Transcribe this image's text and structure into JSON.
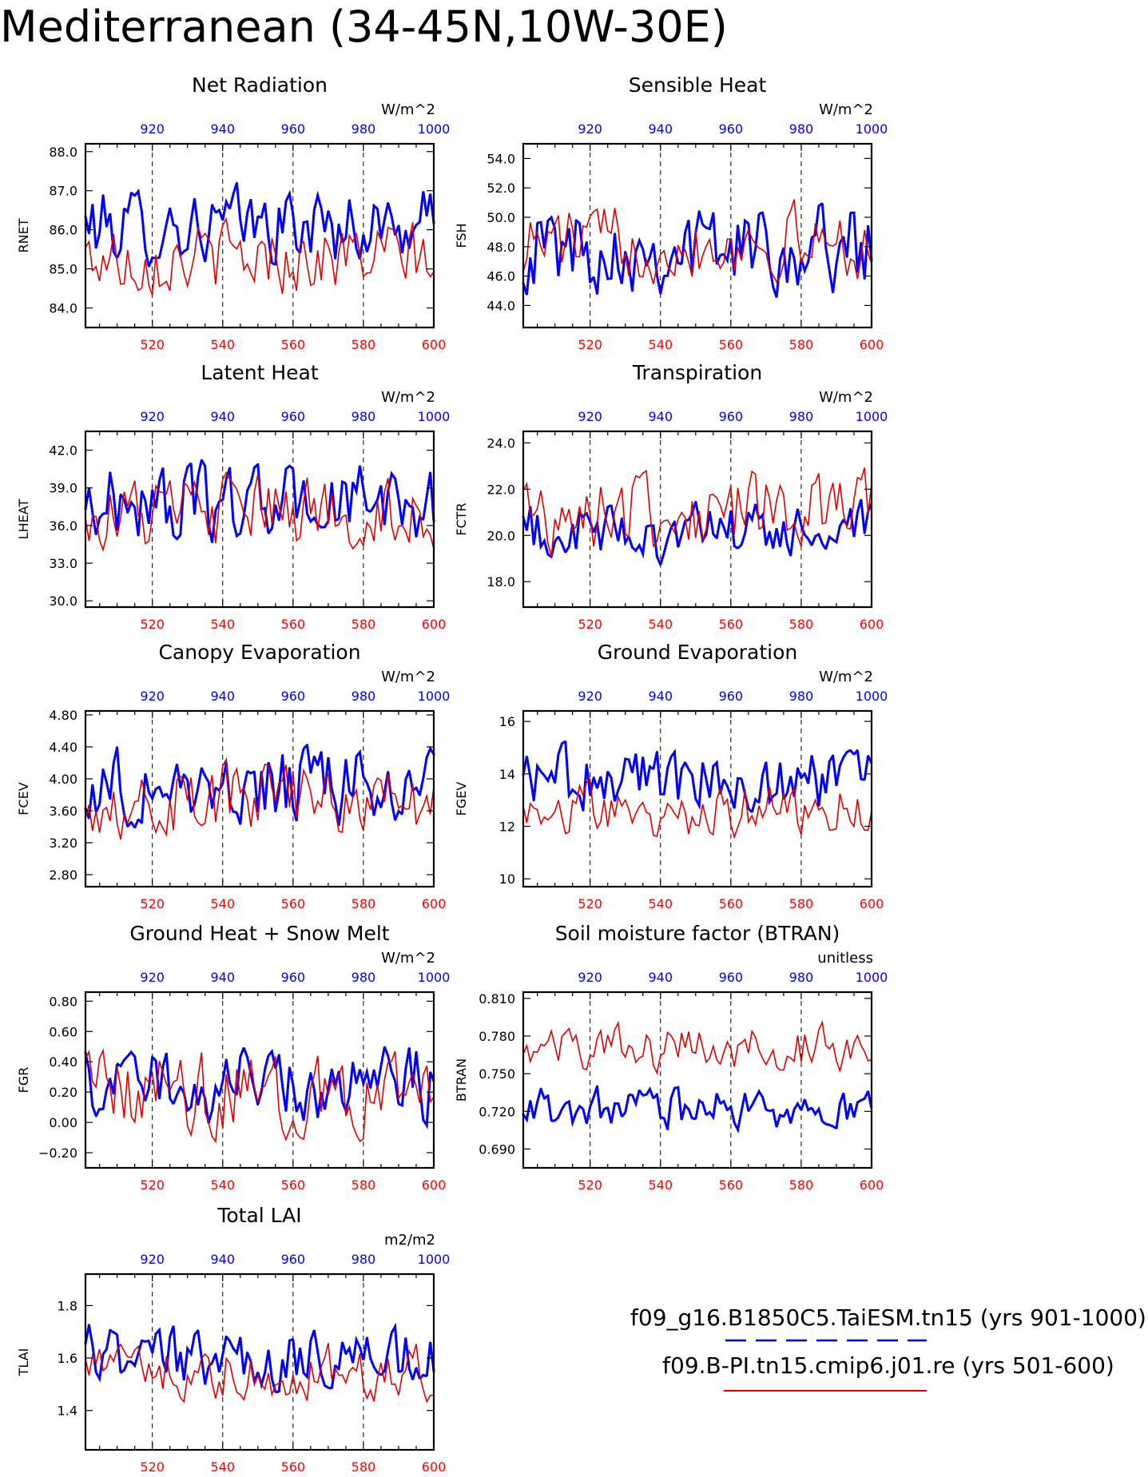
{
  "page_title": "Mediterranean (34-45N,10W-30E)",
  "legend": {
    "placement": "bottom-right",
    "case1_label": "f09_g16.B1850C5.TaiESM.tn15 (yrs 901-1000)",
    "case1_color": "#0000ff",
    "case1_style": "dashed",
    "case2_label": "f09.B-PI.tn15.cmip6.j01.re (yrs 501-600)",
    "case2_color": "#e00000",
    "case2_style": "solid"
  },
  "chart_data": [
    {
      "type": "line",
      "title": "Net Radiation",
      "ylabel": "RNET",
      "units": "W/m^2",
      "ylim": [
        83.5,
        88.2
      ],
      "yticks": [
        "84.0",
        "85.0",
        "86.0",
        "87.0",
        "88.0"
      ],
      "x_bottom": {
        "range": [
          501,
          600
        ],
        "ticks": [
          "520",
          "540",
          "560",
          "580",
          "600"
        ]
      },
      "x_top": {
        "range": [
          901,
          1000
        ],
        "ticks": [
          "920",
          "940",
          "960",
          "980",
          "1000"
        ]
      },
      "series": [
        {
          "color": "#0000ff",
          "mean": 86.1,
          "amp": 0.75
        },
        {
          "color": "#e00000",
          "mean": 85.3,
          "amp": 0.7
        }
      ]
    },
    {
      "type": "line",
      "title": "Sensible Heat",
      "ylabel": "FSH",
      "units": "W/m^2",
      "ylim": [
        42.5,
        55.0
      ],
      "yticks": [
        "44.0",
        "46.0",
        "48.0",
        "50.0",
        "52.0",
        "54.0"
      ],
      "x_bottom": {
        "range": [
          501,
          600
        ],
        "ticks": [
          "520",
          "540",
          "560",
          "580",
          "600"
        ]
      },
      "x_top": {
        "range": [
          901,
          1000
        ],
        "ticks": [
          "920",
          "940",
          "960",
          "980",
          "1000"
        ]
      },
      "series": [
        {
          "color": "#0000ff",
          "mean": 48.0,
          "amp": 2.3
        },
        {
          "color": "#e00000",
          "mean": 48.3,
          "amp": 1.9
        }
      ]
    },
    {
      "type": "line",
      "title": "Latent Heat",
      "ylabel": "LHEAT",
      "units": "W/m^2",
      "ylim": [
        29.5,
        43.5
      ],
      "yticks": [
        "30.0",
        "33.0",
        "36.0",
        "39.0",
        "42.0"
      ],
      "x_bottom": {
        "range": [
          501,
          600
        ],
        "ticks": [
          "520",
          "540",
          "560",
          "580",
          "600"
        ]
      },
      "x_top": {
        "range": [
          901,
          1000
        ],
        "ticks": [
          "920",
          "940",
          "960",
          "980",
          "1000"
        ]
      },
      "series": [
        {
          "color": "#0000ff",
          "mean": 37.8,
          "amp": 2.4
        },
        {
          "color": "#e00000",
          "mean": 37.0,
          "amp": 2.3
        }
      ]
    },
    {
      "type": "line",
      "title": "Transpiration",
      "ylabel": "FCTR",
      "units": "W/m^2",
      "ylim": [
        16.9,
        24.5
      ],
      "yticks": [
        "18.0",
        "20.0",
        "22.0",
        "24.0"
      ],
      "x_bottom": {
        "range": [
          501,
          600
        ],
        "ticks": [
          "520",
          "540",
          "560",
          "580",
          "600"
        ]
      },
      "x_top": {
        "range": [
          901,
          1000
        ],
        "ticks": [
          "920",
          "940",
          "960",
          "980",
          "1000"
        ]
      },
      "series": [
        {
          "color": "#0000ff",
          "mean": 20.1,
          "amp": 1.0
        },
        {
          "color": "#e00000",
          "mean": 21.0,
          "amp": 1.3
        }
      ]
    },
    {
      "type": "line",
      "title": "Canopy Evaporation",
      "ylabel": "FCEV",
      "units": "W/m^2",
      "ylim": [
        2.65,
        4.85
      ],
      "yticks": [
        "2.80",
        "3.20",
        "3.60",
        "4.00",
        "4.40",
        "4.80"
      ],
      "x_bottom": {
        "range": [
          501,
          600
        ],
        "ticks": [
          "520",
          "540",
          "560",
          "580",
          "600"
        ]
      },
      "x_top": {
        "range": [
          901,
          1000
        ],
        "ticks": [
          "920",
          "940",
          "960",
          "980",
          "1000"
        ]
      },
      "series": [
        {
          "color": "#0000ff",
          "mean": 3.9,
          "amp": 0.38
        },
        {
          "color": "#e00000",
          "mean": 3.75,
          "amp": 0.35
        }
      ]
    },
    {
      "type": "line",
      "title": "Ground Evaporation",
      "ylabel": "FGEV",
      "units": "W/m^2",
      "ylim": [
        9.7,
        16.4
      ],
      "yticks": [
        "10",
        "12",
        "14",
        "16"
      ],
      "x_bottom": {
        "range": [
          501,
          600
        ],
        "ticks": [
          "520",
          "540",
          "560",
          "580",
          "600"
        ]
      },
      "x_top": {
        "range": [
          901,
          1000
        ],
        "ticks": [
          "920",
          "940",
          "960",
          "980",
          "1000"
        ]
      },
      "series": [
        {
          "color": "#0000ff",
          "mean": 13.8,
          "amp": 1.0
        },
        {
          "color": "#e00000",
          "mean": 12.6,
          "amp": 0.8
        }
      ]
    },
    {
      "type": "line",
      "title": "Ground Heat + Snow Melt",
      "ylabel": "FGR",
      "units": "W/m^2",
      "ylim": [
        -0.3,
        0.86
      ],
      "yticks": [
        "−0.20",
        "0.00",
        "0.20",
        "0.40",
        "0.60",
        "0.80"
      ],
      "x_bottom": {
        "range": [
          501,
          600
        ],
        "ticks": [
          "520",
          "540",
          "560",
          "580",
          "600"
        ]
      },
      "x_top": {
        "range": [
          901,
          1000
        ],
        "ticks": [
          "920",
          "940",
          "960",
          "980",
          "1000"
        ]
      },
      "series": [
        {
          "color": "#0000ff",
          "mean": 0.25,
          "amp": 0.2
        },
        {
          "color": "#e00000",
          "mean": 0.2,
          "amp": 0.2
        }
      ]
    },
    {
      "type": "line",
      "title": "Soil moisture factor (BTRAN)",
      "ylabel": "BTRAN",
      "units": "unitless",
      "ylim": [
        0.675,
        0.815
      ],
      "yticks": [
        "0.690",
        "0.720",
        "0.750",
        "0.780",
        "0.810"
      ],
      "x_bottom": {
        "range": [
          501,
          600
        ],
        "ticks": [
          "520",
          "540",
          "560",
          "580",
          "600"
        ]
      },
      "x_top": {
        "range": [
          901,
          1000
        ],
        "ticks": [
          "920",
          "940",
          "960",
          "980",
          "1000"
        ]
      },
      "series": [
        {
          "color": "#0000ff",
          "mean": 0.722,
          "amp": 0.013
        },
        {
          "color": "#e00000",
          "mean": 0.77,
          "amp": 0.014
        }
      ]
    },
    {
      "type": "line",
      "title": "Total LAI",
      "ylabel": "TLAI",
      "units": "m2/m2",
      "ylim": [
        1.25,
        1.92
      ],
      "yticks": [
        "1.4",
        "1.6",
        "1.8"
      ],
      "x_bottom": {
        "range": [
          501,
          600
        ],
        "ticks": [
          "520",
          "540",
          "560",
          "580",
          "600"
        ]
      },
      "x_top": {
        "range": [
          901,
          1000
        ],
        "ticks": [
          "920",
          "940",
          "960",
          "980",
          "1000"
        ]
      },
      "series": [
        {
          "color": "#0000ff",
          "mean": 1.6,
          "amp": 0.1
        },
        {
          "color": "#e00000",
          "mean": 1.55,
          "amp": 0.08
        }
      ]
    }
  ]
}
